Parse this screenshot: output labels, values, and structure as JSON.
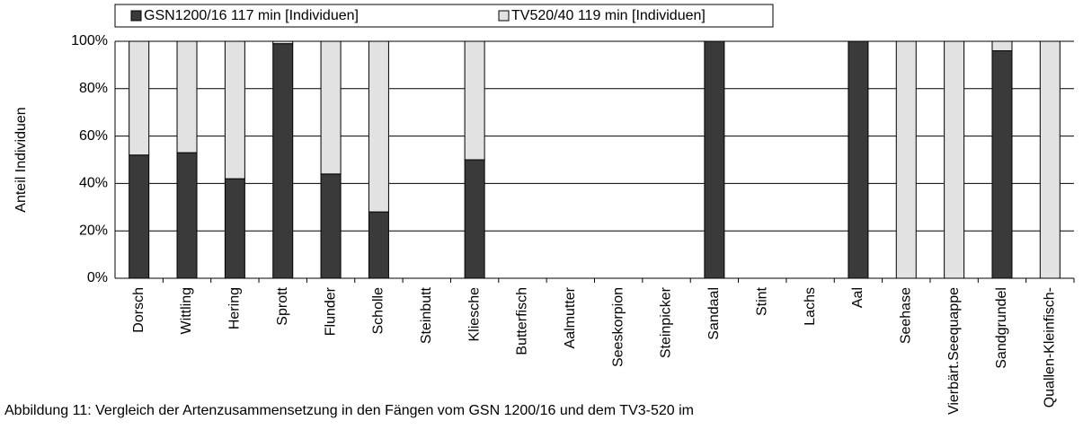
{
  "chart_data": {
    "type": "stacked_bar",
    "y_label": "Anteil Individuen",
    "caption": "Abbildung 11: Vergleich der Artenzusammensetzung in den Fängen vom GSN 1200/16 und dem TV3-520 im",
    "categories": [
      "Dorsch",
      "Wittling",
      "Hering",
      "Sprott",
      "Flunder",
      "Scholle",
      "Steinbutt",
      "Kliesche",
      "Butterfisch",
      "Aalmutter",
      "Seeskorpion",
      "Steinpicker",
      "Sandaal",
      "Stint",
      "Lachs",
      "Aal",
      "Seehase",
      "Vierbärt.Seequappe",
      "Sandgrundel",
      "Quallen-Kleinfisch-"
    ],
    "series": [
      {
        "name": "GSN1200/16 117 min [Individuen]",
        "color": "#3a3a3a",
        "values": [
          52,
          53,
          42,
          99,
          44,
          28,
          0,
          50,
          0,
          0,
          0,
          0,
          100,
          0,
          0,
          100,
          0,
          0,
          96,
          0
        ]
      },
      {
        "name": "TV520/40 119 min [Individuen]",
        "color": "#e2e2e2",
        "values": [
          48,
          47,
          58,
          1,
          56,
          72,
          0,
          50,
          0,
          0,
          0,
          0,
          0,
          0,
          0,
          0,
          100,
          100,
          4,
          100
        ]
      }
    ],
    "ylim": [
      0,
      100
    ],
    "yticks": [
      {
        "value": 0,
        "label": "0%"
      },
      {
        "value": 20,
        "label": "20%"
      },
      {
        "value": 40,
        "label": "40%"
      },
      {
        "value": 60,
        "label": "60%"
      },
      {
        "value": 80,
        "label": "80%"
      },
      {
        "value": 100,
        "label": "100%"
      }
    ],
    "grid": true
  }
}
